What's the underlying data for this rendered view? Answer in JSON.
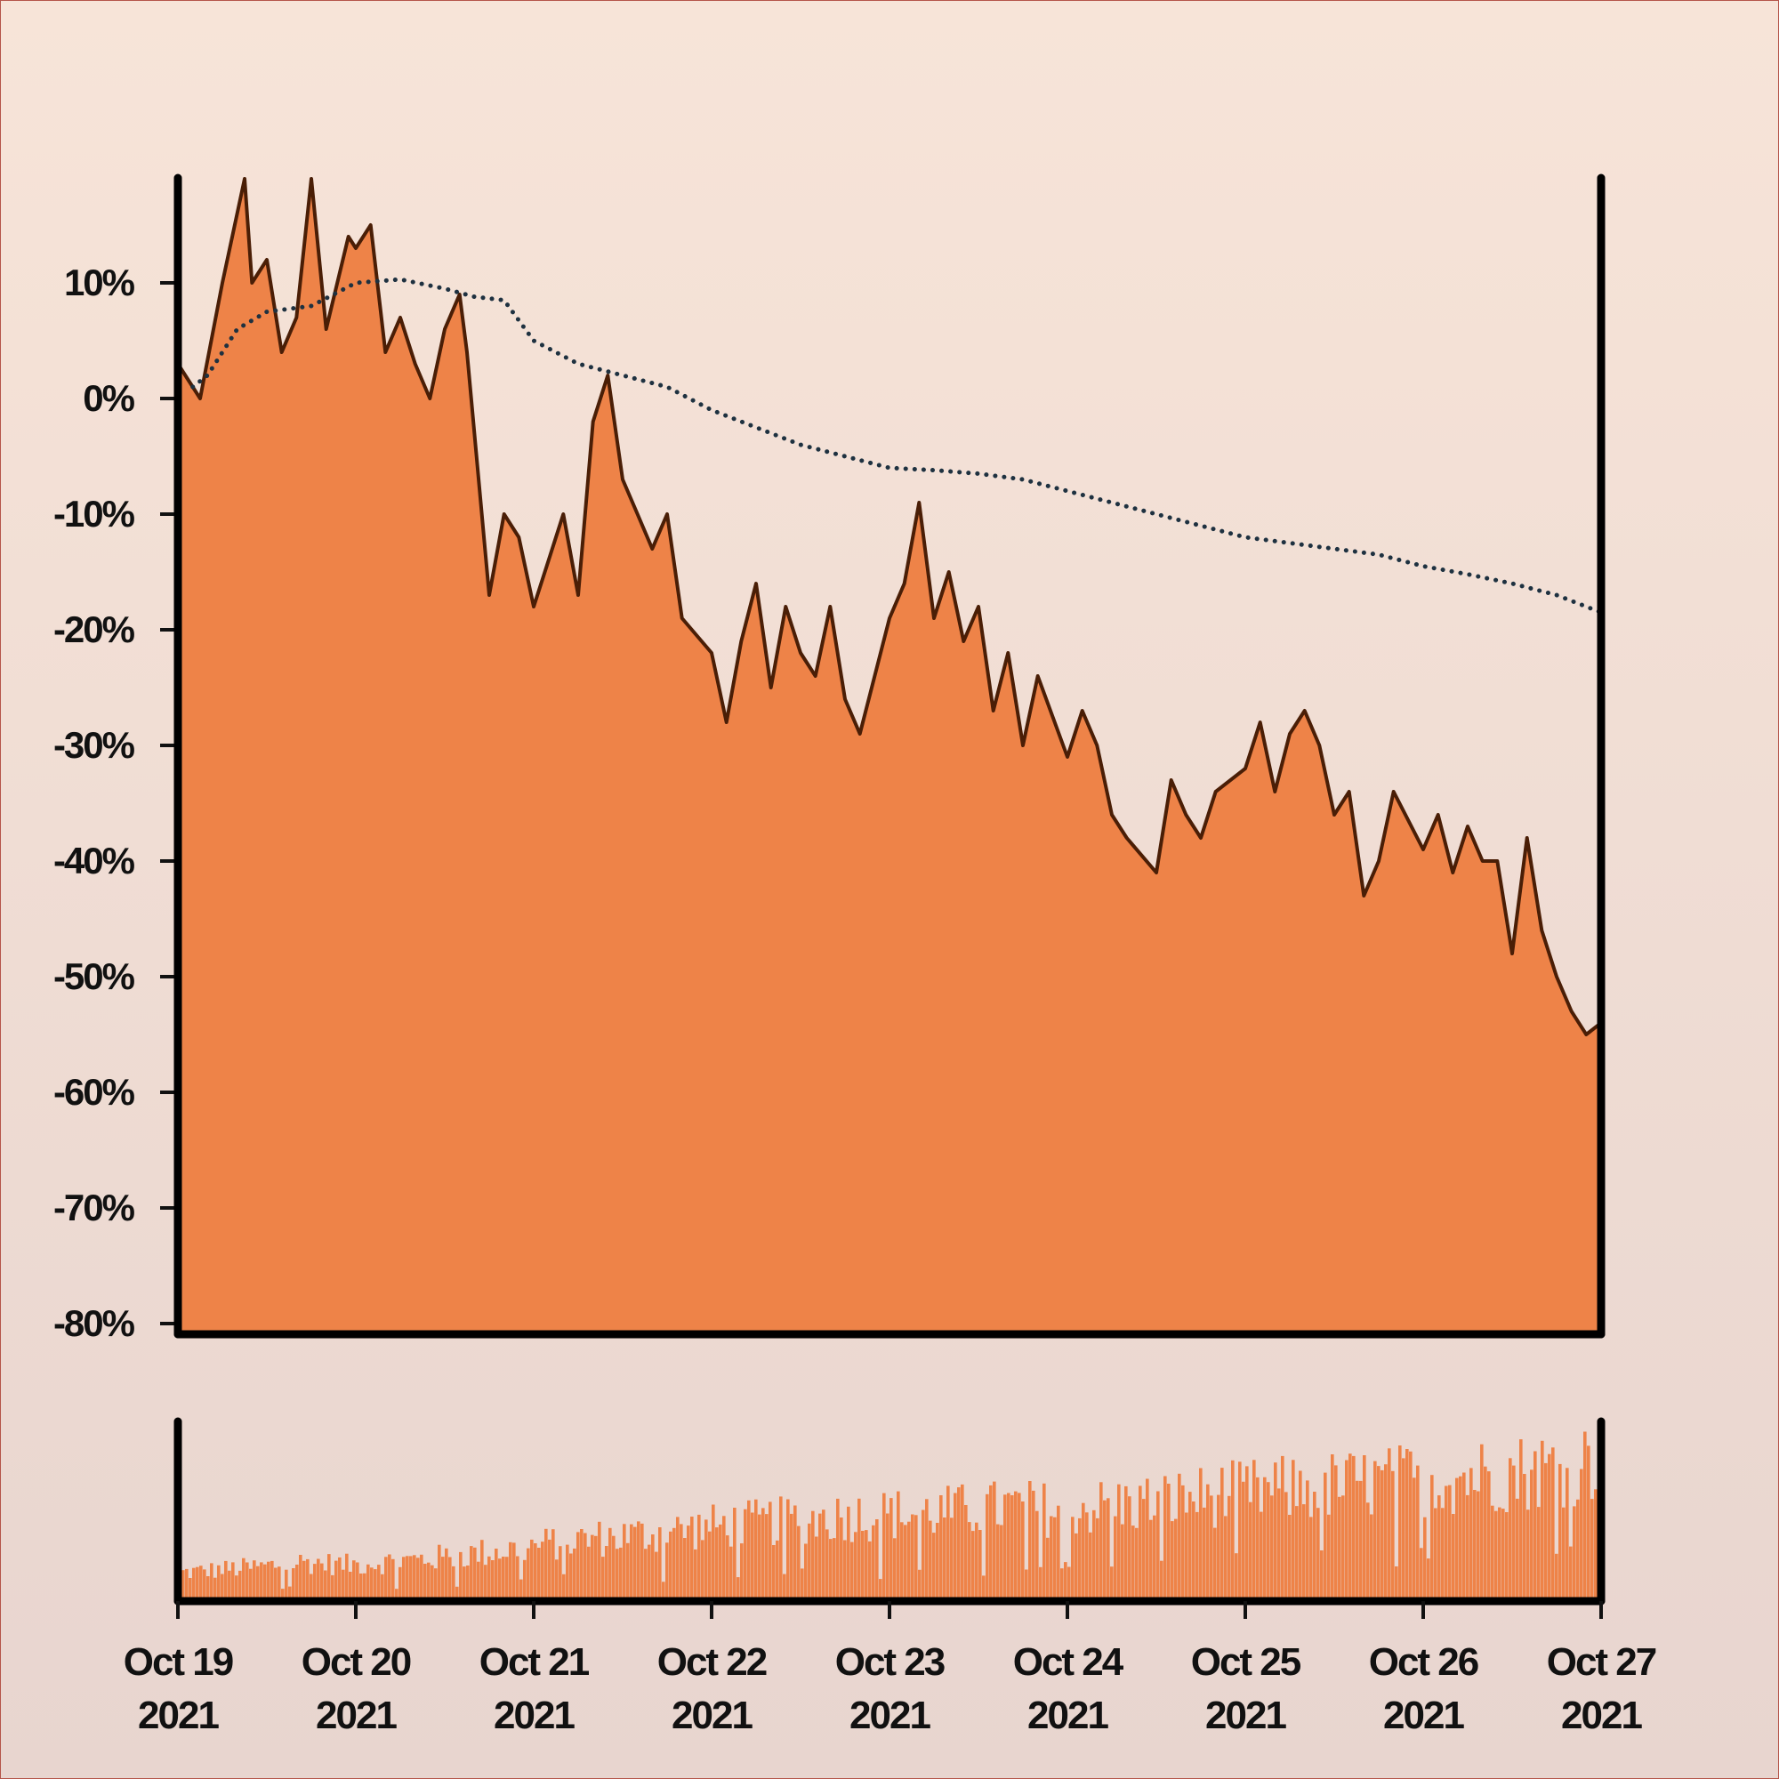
{
  "chart_data": [
    {
      "type": "area",
      "title": "",
      "xlabel": "",
      "ylabel": "",
      "ylim": [
        -80,
        20
      ],
      "yticks": [
        10,
        0,
        -10,
        -20,
        -30,
        -40,
        -50,
        -60,
        -70,
        -80
      ],
      "ytick_labels": [
        "10%",
        "0%",
        "-10%",
        "-20%",
        "-30%",
        "-40%",
        "-50%",
        "-60%",
        "-70%",
        "-80%"
      ],
      "x_range": [
        "2021-10-19",
        "2021-10-27"
      ],
      "grid": false,
      "series": [
        {
          "style": "area with dark line",
          "fill_color": "#ee8348",
          "line_color": "#4a1e06",
          "x": [
            "2021-10-19 00:00",
            "2021-10-19 03:00",
            "2021-10-19 06:00",
            "2021-10-19 09:00",
            "2021-10-19 10:00",
            "2021-10-19 12:00",
            "2021-10-19 14:00",
            "2021-10-19 16:00",
            "2021-10-19 18:00",
            "2021-10-19 20:00",
            "2021-10-19 23:00",
            "2021-10-20 00:00",
            "2021-10-20 02:00",
            "2021-10-20 04:00",
            "2021-10-20 06:00",
            "2021-10-20 08:00",
            "2021-10-20 10:00",
            "2021-10-20 12:00",
            "2021-10-20 14:00",
            "2021-10-20 15:00",
            "2021-10-20 18:00",
            "2021-10-20 20:00",
            "2021-10-20 22:00",
            "2021-10-21 00:00",
            "2021-10-21 02:00",
            "2021-10-21 04:00",
            "2021-10-21 06:00",
            "2021-10-21 08:00",
            "2021-10-21 10:00",
            "2021-10-21 12:00",
            "2021-10-21 14:00",
            "2021-10-21 16:00",
            "2021-10-21 18:00",
            "2021-10-21 20:00",
            "2021-10-22 00:00",
            "2021-10-22 02:00",
            "2021-10-22 04:00",
            "2021-10-22 06:00",
            "2021-10-22 08:00",
            "2021-10-22 10:00",
            "2021-10-22 12:00",
            "2021-10-22 14:00",
            "2021-10-22 16:00",
            "2021-10-22 18:00",
            "2021-10-22 20:00",
            "2021-10-23 00:00",
            "2021-10-23 02:00",
            "2021-10-23 04:00",
            "2021-10-23 06:00",
            "2021-10-23 08:00",
            "2021-10-23 10:00",
            "2021-10-23 12:00",
            "2021-10-23 14:00",
            "2021-10-23 16:00",
            "2021-10-23 18:00",
            "2021-10-23 20:00",
            "2021-10-24 00:00",
            "2021-10-24 02:00",
            "2021-10-24 04:00",
            "2021-10-24 06:00",
            "2021-10-24 08:00",
            "2021-10-24 12:00",
            "2021-10-24 14:00",
            "2021-10-24 16:00",
            "2021-10-24 18:00",
            "2021-10-24 20:00",
            "2021-10-25 00:00",
            "2021-10-25 02:00",
            "2021-10-25 04:00",
            "2021-10-25 06:00",
            "2021-10-25 08:00",
            "2021-10-25 10:00",
            "2021-10-25 12:00",
            "2021-10-25 14:00",
            "2021-10-25 16:00",
            "2021-10-25 18:00",
            "2021-10-25 20:00",
            "2021-10-26 00:00",
            "2021-10-26 02:00",
            "2021-10-26 04:00",
            "2021-10-26 06:00",
            "2021-10-26 08:00",
            "2021-10-26 10:00",
            "2021-10-26 12:00",
            "2021-10-26 14:00",
            "2021-10-26 16:00",
            "2021-10-26 18:00",
            "2021-10-26 20:00",
            "2021-10-26 22:00",
            "2021-10-27 00:00"
          ],
          "values": [
            3,
            0,
            10,
            19,
            10,
            12,
            4,
            7,
            19,
            6,
            14,
            13,
            15,
            4,
            7,
            3,
            0,
            6,
            9,
            4,
            -17,
            -10,
            -12,
            -18,
            -14,
            -10,
            -17,
            -2,
            2,
            -7,
            -10,
            -13,
            -10,
            -19,
            -22,
            -28,
            -21,
            -16,
            -25,
            -18,
            -22,
            -24,
            -18,
            -26,
            -29,
            -19,
            -16,
            -9,
            -19,
            -15,
            -21,
            -18,
            -27,
            -22,
            -30,
            -24,
            -31,
            -27,
            -30,
            -36,
            -38,
            -41,
            -33,
            -36,
            -38,
            -34,
            -32,
            -28,
            -34,
            -29,
            -27,
            -30,
            -36,
            -34,
            -43,
            -40,
            -34,
            -39,
            -36,
            -41,
            -37,
            -40,
            -40,
            -48,
            -38,
            -46,
            -50,
            -53,
            -55,
            -54
          ]
        },
        {
          "style": "dotted moving average",
          "line_color": "#1e3140",
          "x": [
            "2021-10-19 02:00",
            "2021-10-19 04:00",
            "2021-10-19 08:00",
            "2021-10-19 12:00",
            "2021-10-19 18:00",
            "2021-10-20 00:00",
            "2021-10-20 06:00",
            "2021-10-20 12:00",
            "2021-10-20 16:00",
            "2021-10-20 20:00",
            "2021-10-21 00:00",
            "2021-10-21 06:00",
            "2021-10-21 12:00",
            "2021-10-21 18:00",
            "2021-10-22 00:00",
            "2021-10-22 06:00",
            "2021-10-22 12:00",
            "2021-10-22 18:00",
            "2021-10-23 00:00",
            "2021-10-23 06:00",
            "2021-10-23 12:00",
            "2021-10-23 18:00",
            "2021-10-24 00:00",
            "2021-10-24 06:00",
            "2021-10-24 12:00",
            "2021-10-24 18:00",
            "2021-10-25 00:00",
            "2021-10-25 06:00",
            "2021-10-25 12:00",
            "2021-10-25 18:00",
            "2021-10-26 00:00",
            "2021-10-26 06:00",
            "2021-10-26 12:00",
            "2021-10-26 18:00",
            "2021-10-27 00:00"
          ],
          "values": [
            1,
            2,
            6,
            7.5,
            8,
            10,
            10.3,
            9.5,
            8.8,
            8.5,
            5,
            3,
            2,
            1,
            -1,
            -2.5,
            -4,
            -5,
            -6,
            -6.2,
            -6.5,
            -7,
            -8,
            -9,
            -10,
            -11,
            -12,
            -12.5,
            -13,
            -13.5,
            -14.5,
            -15.2,
            -16,
            -17,
            -18.5
          ]
        }
      ]
    },
    {
      "type": "bar",
      "title": "",
      "xlabel": "",
      "ylabel": "",
      "fill_color": "#ee8348",
      "x_range": [
        "2021-10-19",
        "2021-10-27"
      ],
      "xtick_labels": [
        {
          "month_day": "Oct 19",
          "year": "2021"
        },
        {
          "month_day": "Oct 20",
          "year": "2021"
        },
        {
          "month_day": "Oct 21",
          "year": "2021"
        },
        {
          "month_day": "Oct 22",
          "year": "2021"
        },
        {
          "month_day": "Oct 23",
          "year": "2021"
        },
        {
          "month_day": "Oct 24",
          "year": "2021"
        },
        {
          "month_day": "Oct 25",
          "year": "2021"
        },
        {
          "month_day": "Oct 26",
          "year": "2021"
        },
        {
          "month_day": "Oct 27",
          "year": "2021"
        }
      ],
      "values_level": [
        0.18,
        0.2,
        0.22,
        0.25,
        0.23,
        0.25,
        0.27,
        0.3,
        0.33,
        0.37,
        0.4,
        0.42,
        0.45,
        0.48,
        0.5,
        0.52,
        0.54,
        0.55,
        0.56,
        0.58,
        0.6,
        0.58,
        0.6,
        0.62,
        0.65,
        0.68,
        0.7,
        0.72,
        0.74,
        0.76,
        0.78,
        0.8,
        0.82,
        0.85,
        0.9
      ]
    }
  ]
}
